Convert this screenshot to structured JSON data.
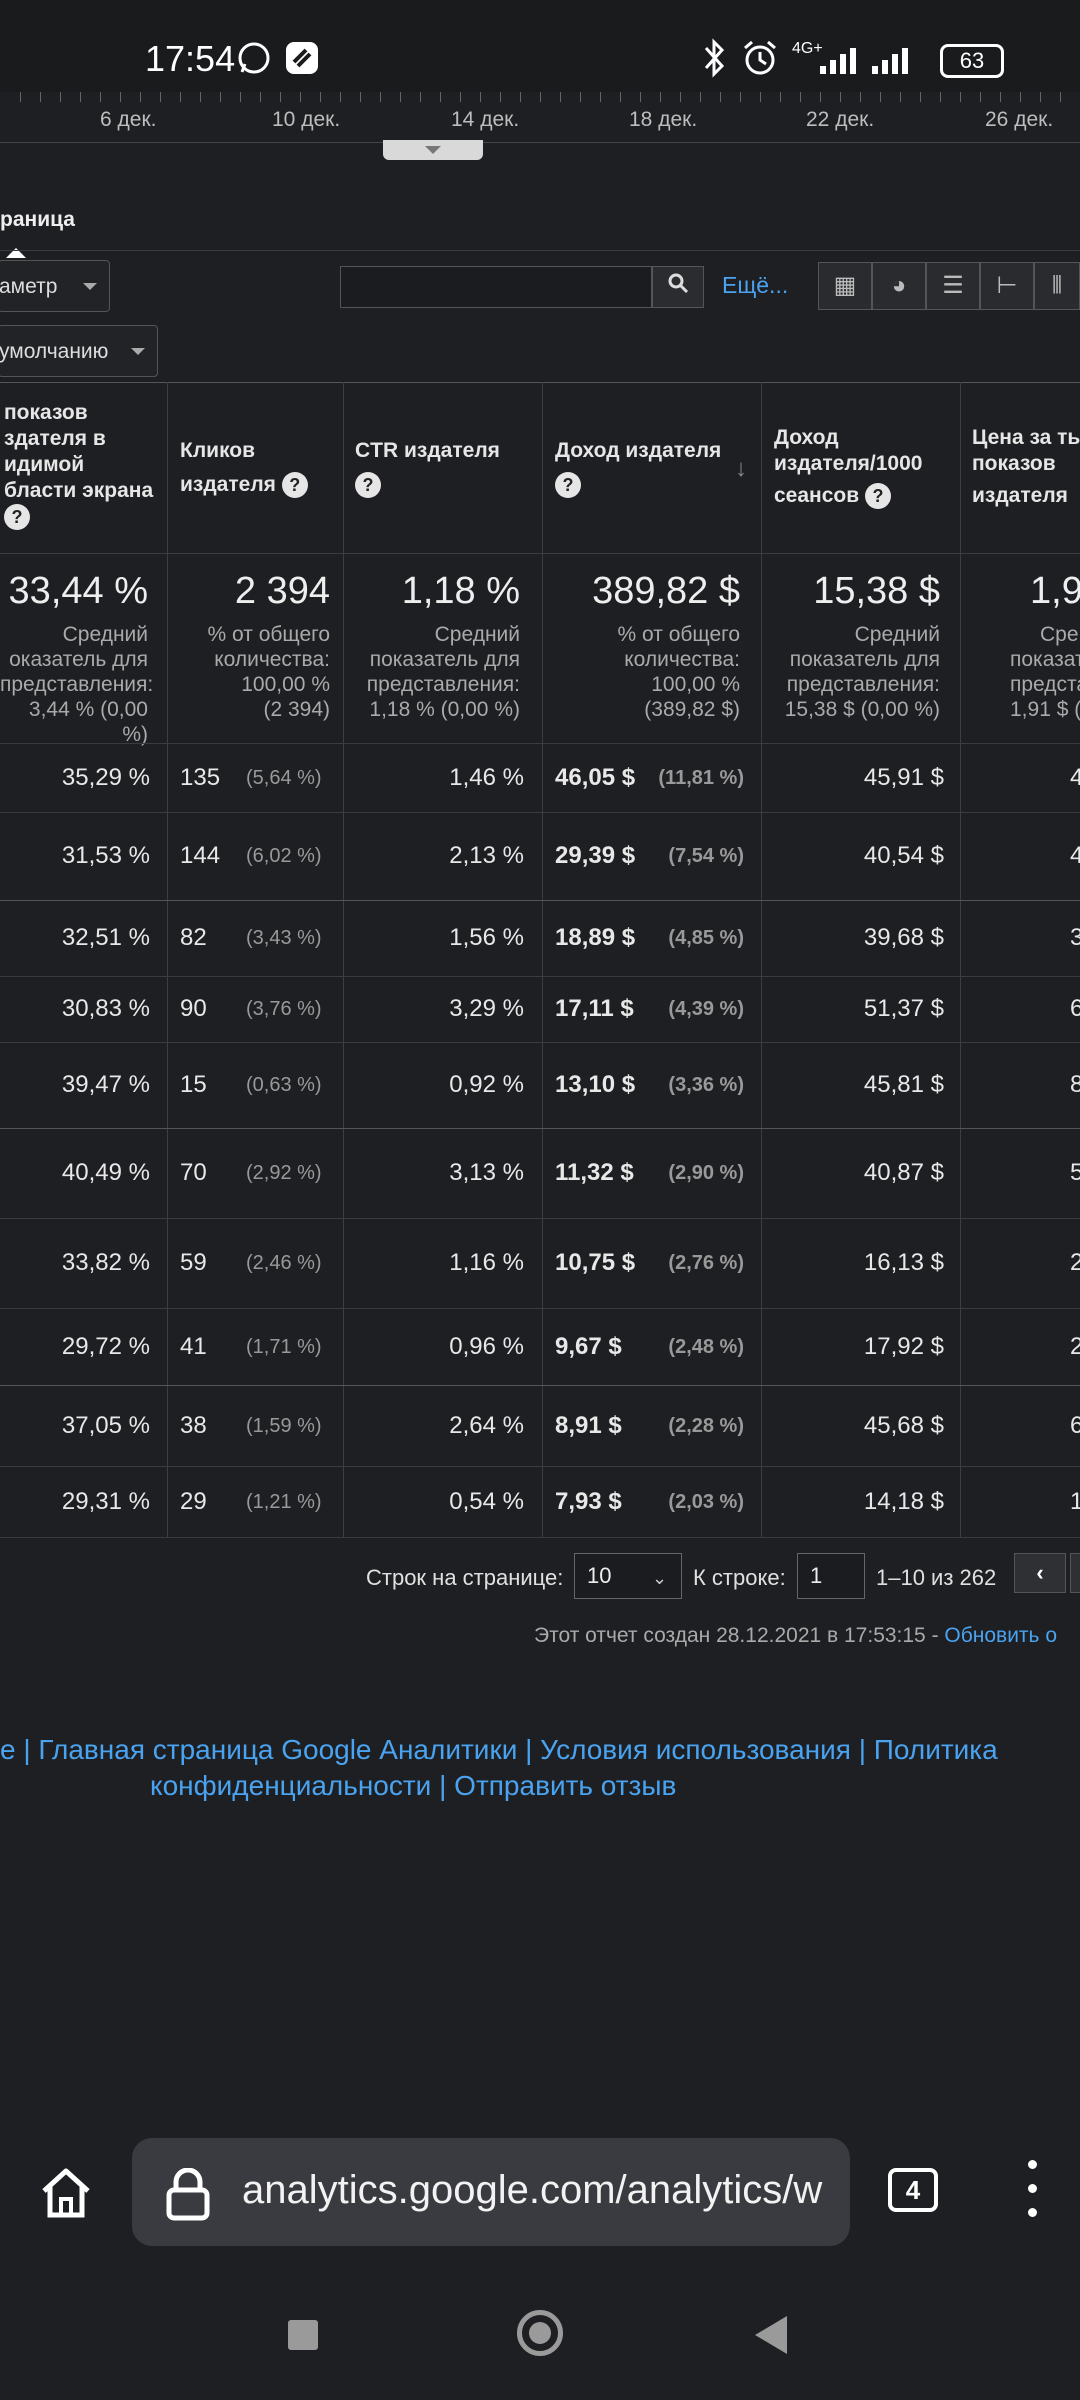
{
  "status_bar": {
    "time": "17:54",
    "network": "4G+",
    "battery": "63"
  },
  "timeline": {
    "ticks": [
      "6 дек.",
      "10 дек.",
      "14 дек.",
      "18 дек.",
      "22 дек.",
      "26 дек."
    ]
  },
  "tab": {
    "label": "раница"
  },
  "controls": {
    "param_dropdown": "аметр",
    "default_dropdown": "умолчанию",
    "search_value": "",
    "more_link": "Ещё..."
  },
  "table": {
    "headers": [
      [
        "показов",
        "здателя в",
        "идимой",
        "бласти экрана"
      ],
      [
        "Кликов",
        "издателя"
      ],
      [
        "CTR издателя"
      ],
      [
        "Доход издателя"
      ],
      [
        "Доход",
        "издателя/1000",
        "сеансов"
      ],
      [
        "Цена за ты",
        "показов",
        "издателя"
      ]
    ],
    "totals": [
      {
        "value": "33,44 %",
        "sub": [
          "Средний",
          "оказатель для",
          "представления:",
          "3,44 % (0,00 %)"
        ]
      },
      {
        "value": "2 394",
        "sub": [
          "% от общего",
          "количества:",
          "100,00 %",
          "(2 394)"
        ]
      },
      {
        "value": "1,18 %",
        "sub": [
          "Средний",
          "показатель для",
          "представления:",
          "1,18 % (0,00 %)"
        ]
      },
      {
        "value": "389,82 $",
        "sub": [
          "% от общего",
          "количества:",
          "100,00 %",
          "(389,82 $)"
        ]
      },
      {
        "value": "15,38 $",
        "sub": [
          "Средний",
          "показатель для",
          "представления:",
          "15,38 $ (0,00 %)"
        ]
      },
      {
        "value": "1,9",
        "sub": [
          "Сре",
          "показател",
          "представле",
          "1,91 $ (0"
        ]
      }
    ],
    "rows": [
      {
        "viewable": "35,29 %",
        "clicks": "135",
        "clicks_pct": "(5,64 %)",
        "ctr": "1,46 %",
        "revenue": "46,05 $",
        "revenue_pct": "(11,81 %)",
        "rev_1000": "45,91 $",
        "last": "4"
      },
      {
        "viewable": "31,53 %",
        "clicks": "144",
        "clicks_pct": "(6,02 %)",
        "ctr": "2,13 %",
        "revenue": "29,39 $",
        "revenue_pct": "(7,54 %)",
        "rev_1000": "40,54 $",
        "last": "4"
      },
      {
        "viewable": "32,51 %",
        "clicks": "82",
        "clicks_pct": "(3,43 %)",
        "ctr": "1,56 %",
        "revenue": "18,89 $",
        "revenue_pct": "(4,85 %)",
        "rev_1000": "39,68 $",
        "last": "3"
      },
      {
        "viewable": "30,83 %",
        "clicks": "90",
        "clicks_pct": "(3,76 %)",
        "ctr": "3,29 %",
        "revenue": "17,11 $",
        "revenue_pct": "(4,39 %)",
        "rev_1000": "51,37 $",
        "last": "6"
      },
      {
        "viewable": "39,47 %",
        "clicks": "15",
        "clicks_pct": "(0,63 %)",
        "ctr": "0,92 %",
        "revenue": "13,10 $",
        "revenue_pct": "(3,36 %)",
        "rev_1000": "45,81 $",
        "last": "8"
      },
      {
        "viewable": "40,49 %",
        "clicks": "70",
        "clicks_pct": "(2,92 %)",
        "ctr": "3,13 %",
        "revenue": "11,32 $",
        "revenue_pct": "(2,90 %)",
        "rev_1000": "40,87 $",
        "last": "5"
      },
      {
        "viewable": "33,82 %",
        "clicks": "59",
        "clicks_pct": "(2,46 %)",
        "ctr": "1,16 %",
        "revenue": "10,75 $",
        "revenue_pct": "(2,76 %)",
        "rev_1000": "16,13 $",
        "last": "2"
      },
      {
        "viewable": "29,72 %",
        "clicks": "41",
        "clicks_pct": "(1,71 %)",
        "ctr": "0,96 %",
        "revenue": "9,67 $",
        "revenue_pct": "(2,48 %)",
        "rev_1000": "17,92 $",
        "last": "2"
      },
      {
        "viewable": "37,05 %",
        "clicks": "38",
        "clicks_pct": "(1,59 %)",
        "ctr": "2,64 %",
        "revenue": "8,91 $",
        "revenue_pct": "(2,28 %)",
        "rev_1000": "45,68 $",
        "last": "6"
      },
      {
        "viewable": "29,31 %",
        "clicks": "29",
        "clicks_pct": "(1,21 %)",
        "ctr": "0,54 %",
        "revenue": "7,93 $",
        "revenue_pct": "(2,03 %)",
        "rev_1000": "14,18 $",
        "last": "1"
      }
    ]
  },
  "pagination": {
    "rows_label": "Строк на странице:",
    "rows_value": "10",
    "goto_label": "К строке:",
    "goto_value": "1",
    "range": "1–10 из 262"
  },
  "report": {
    "created": "Этот отчет создан 28.12.2021 в 17:53:15 - ",
    "refresh_link": "Обновить о"
  },
  "footer": {
    "line1": "е | Главная страница Google Аналитики | Условия использования | Политика",
    "line2": "конфиденциальности | Отправить отзыв"
  },
  "browser": {
    "url": "analytics.google.com/analytics/w",
    "tab_count": "4"
  },
  "icons": {
    "search": "search-icon",
    "home": "home-icon",
    "lock": "lock-icon",
    "menu": "more-vert-icon"
  }
}
